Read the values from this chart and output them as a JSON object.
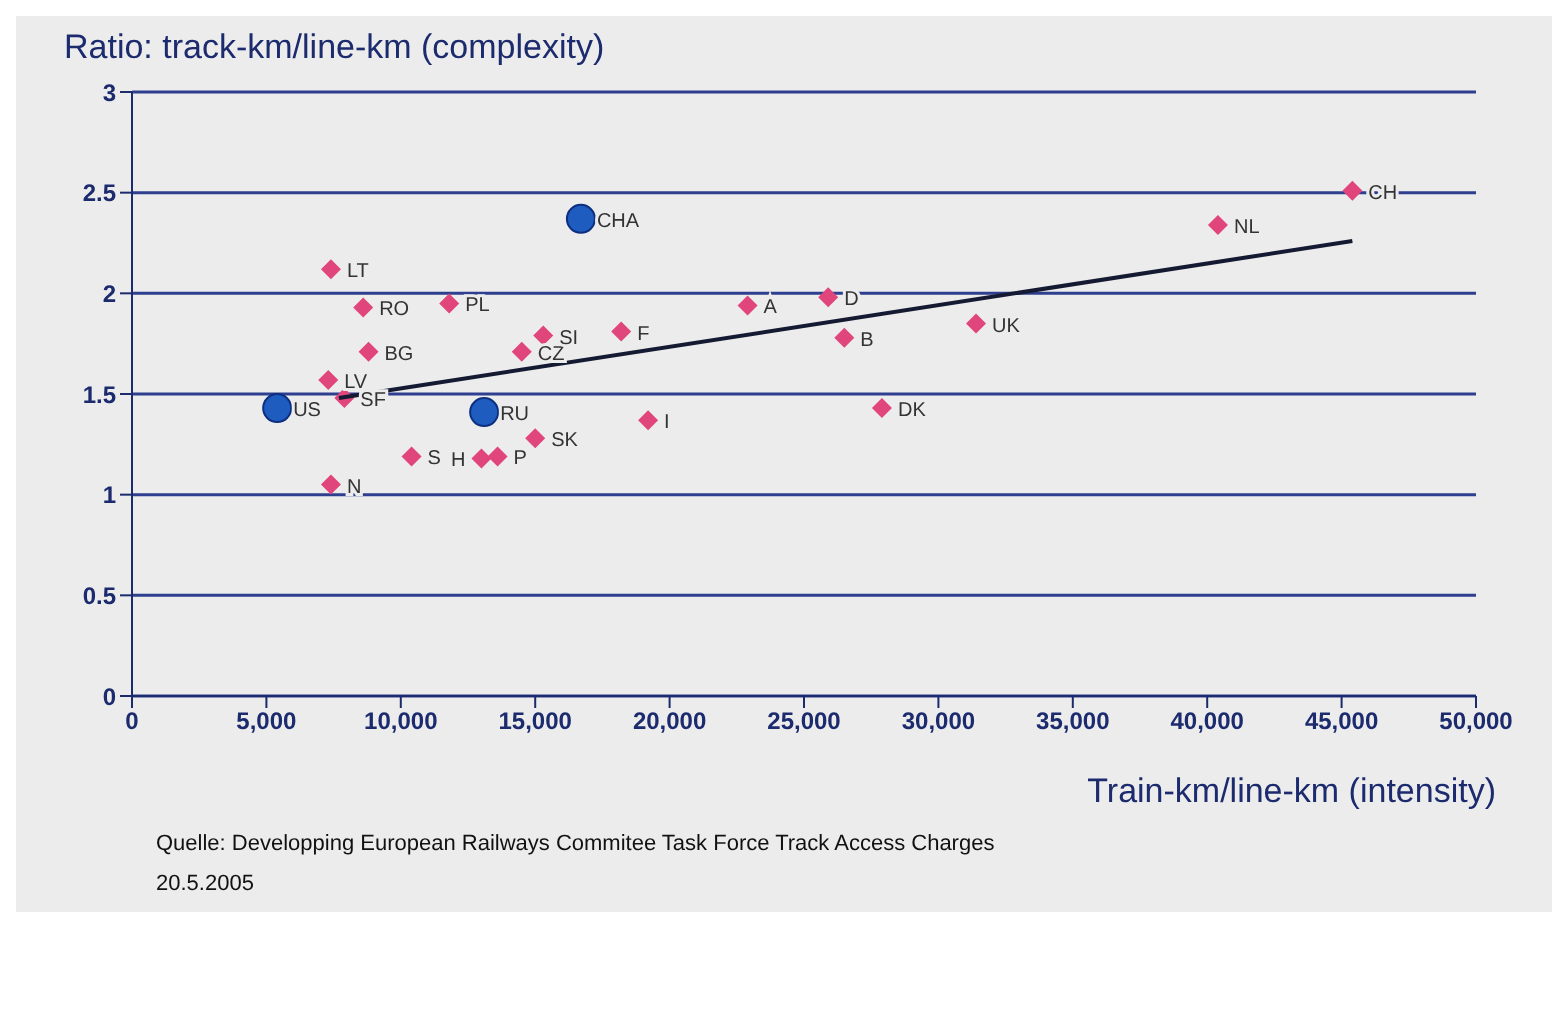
{
  "chart_data": {
    "type": "scatter",
    "ylabel": "Ratio: track-km/line-km (complexity)",
    "xlabel": "Train-km/line-km (intensity)",
    "xlim": [
      0,
      50000
    ],
    "xticks": [
      {
        "value": 0,
        "label": "0"
      },
      {
        "value": 5000,
        "label": "5,000"
      },
      {
        "value": 10000,
        "label": "10,000"
      },
      {
        "value": 15000,
        "label": "15,000"
      },
      {
        "value": 20000,
        "label": "20,000"
      },
      {
        "value": 25000,
        "label": "25,000"
      },
      {
        "value": 30000,
        "label": "30,000"
      },
      {
        "value": 35000,
        "label": "35,000"
      },
      {
        "value": 40000,
        "label": "40,000"
      },
      {
        "value": 45000,
        "label": "45,000"
      },
      {
        "value": 50000,
        "label": "50,000"
      }
    ],
    "ylim": [
      0,
      3
    ],
    "yticks": [
      0,
      0.5,
      1,
      1.5,
      2,
      2.5,
      3
    ],
    "grid": "y",
    "series": [
      {
        "color": "#e0457b",
        "marker": "diamond",
        "x": [
          7400,
          8600,
          11800,
          8800,
          7300,
          7900,
          7400,
          10400,
          13000,
          13600,
          15000,
          14500,
          15300,
          18200,
          19200,
          22900,
          25900,
          26500,
          27900,
          31400,
          40400,
          45400
        ],
        "values": [
          2.12,
          1.93,
          1.95,
          1.71,
          1.57,
          1.48,
          1.05,
          1.19,
          1.18,
          1.19,
          1.28,
          1.71,
          1.79,
          1.81,
          1.37,
          1.94,
          1.98,
          1.78,
          1.43,
          1.85,
          2.34,
          2.51
        ]
      },
      {
        "color": "#1f5cbf",
        "marker": "circle",
        "x": [
          5400,
          16700,
          13100
        ],
        "values": [
          1.43,
          2.37,
          1.41
        ]
      },
      {
        "type": "line",
        "color": "#151a33",
        "x": [
          7700,
          45400
        ],
        "values": [
          1.48,
          2.26
        ]
      }
    ],
    "annotations": [
      {
        "text": "LT",
        "x": 7400,
        "y": 2.12
      },
      {
        "text": "RO",
        "x": 8600,
        "y": 1.93
      },
      {
        "text": "PL",
        "x": 11800,
        "y": 1.95
      },
      {
        "text": "BG",
        "x": 8800,
        "y": 1.71
      },
      {
        "text": "LV",
        "x": 7300,
        "y": 1.57
      },
      {
        "text": "SF",
        "x": 7900,
        "y": 1.48
      },
      {
        "text": "N",
        "x": 7400,
        "y": 1.05
      },
      {
        "text": "S",
        "x": 10400,
        "y": 1.19
      },
      {
        "text": "H",
        "x": 13000,
        "y": 1.18
      },
      {
        "text": "P",
        "x": 13600,
        "y": 1.19
      },
      {
        "text": "SK",
        "x": 15000,
        "y": 1.28
      },
      {
        "text": "CZ",
        "x": 14500,
        "y": 1.71
      },
      {
        "text": "SI",
        "x": 15300,
        "y": 1.79
      },
      {
        "text": "F",
        "x": 18200,
        "y": 1.81
      },
      {
        "text": "I",
        "x": 19200,
        "y": 1.37
      },
      {
        "text": "A",
        "x": 22900,
        "y": 1.94
      },
      {
        "text": "D",
        "x": 25900,
        "y": 1.98
      },
      {
        "text": "B",
        "x": 26500,
        "y": 1.78
      },
      {
        "text": "DK",
        "x": 27900,
        "y": 1.43
      },
      {
        "text": "UK",
        "x": 31400,
        "y": 1.85
      },
      {
        "text": "NL",
        "x": 40400,
        "y": 2.34
      },
      {
        "text": "CH",
        "x": 45400,
        "y": 2.51
      },
      {
        "text": "US",
        "x": 5400,
        "y": 1.43
      },
      {
        "text": "CHA",
        "x": 16700,
        "y": 2.37
      },
      {
        "text": "RU",
        "x": 13100,
        "y": 1.41
      },
      "Quelle: Developping European Railways Commitee Task Force Track Access Charges",
      "20.5.2005"
    ]
  }
}
